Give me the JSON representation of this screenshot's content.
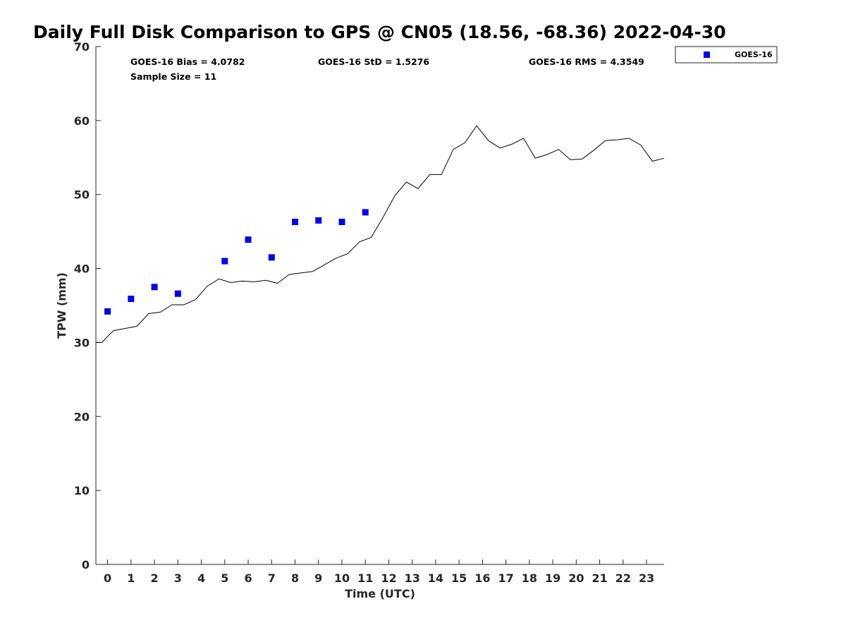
{
  "chart_data": {
    "type": "line",
    "title": "Daily Full Disk Comparison to GPS @ CN05 (18.56, -68.36) 2022-04-30",
    "xlabel": "Time (UTC)",
    "ylabel": "TPW (mm)",
    "xlim": [
      -0.5,
      23.75
    ],
    "ylim": [
      0,
      70
    ],
    "x_ticks": [
      0,
      1,
      2,
      3,
      4,
      5,
      6,
      7,
      8,
      9,
      10,
      11,
      12,
      13,
      14,
      15,
      16,
      17,
      18,
      19,
      20,
      21,
      22,
      23
    ],
    "y_ticks": [
      0,
      10,
      20,
      30,
      40,
      50,
      60,
      70
    ],
    "grid": false,
    "legend_position": "top-right",
    "stats": {
      "bias": "GOES-16 Bias = 4.0782",
      "std": "GOES-16 StD = 1.5276",
      "rms": "GOES-16 RMS = 4.3549",
      "sample_size": "Sample Size = 11"
    },
    "series": [
      {
        "name": "GOES-16",
        "kind": "scatter",
        "color": "#0000ee",
        "x": [
          0,
          1,
          2,
          3,
          5,
          6,
          7,
          8,
          9,
          10,
          11
        ],
        "y": [
          34.2,
          35.9,
          37.5,
          36.6,
          41.0,
          43.9,
          41.5,
          46.3,
          46.5,
          46.3,
          47.6
        ]
      },
      {
        "kind": "line",
        "color": "#000000",
        "x": [
          -0.5,
          -0.25,
          0.25,
          0.75,
          1.25,
          1.75,
          2.25,
          2.75,
          3.25,
          3.75,
          4.25,
          4.75,
          5.25,
          5.75,
          6.25,
          6.75,
          7.25,
          7.75,
          8.25,
          8.75,
          9.25,
          9.75,
          10.25,
          10.75,
          11.25,
          11.75,
          12.25,
          12.75,
          13.25,
          13.75,
          14.25,
          14.75,
          15.25,
          15.75,
          16.25,
          16.75,
          17.25,
          17.75,
          18.25,
          18.75,
          19.25,
          19.75,
          20.25,
          20.75,
          21.25,
          21.75,
          22.25,
          22.75,
          23.25,
          23.75
        ],
        "y": [
          30.0,
          30.0,
          31.6,
          31.9,
          32.2,
          33.9,
          34.1,
          35.1,
          35.1,
          35.8,
          37.6,
          38.6,
          38.1,
          38.3,
          38.2,
          38.4,
          38.0,
          39.2,
          39.4,
          39.6,
          40.5,
          41.4,
          42.0,
          43.6,
          44.2,
          46.9,
          49.8,
          51.7,
          50.8,
          52.7,
          52.7,
          56.1,
          57.0,
          59.3,
          57.3,
          56.3,
          56.8,
          57.6,
          54.9,
          55.4,
          56.1,
          54.7,
          54.8,
          56.0,
          57.3,
          57.4,
          57.6,
          56.7,
          54.5,
          54.9
        ]
      }
    ]
  }
}
